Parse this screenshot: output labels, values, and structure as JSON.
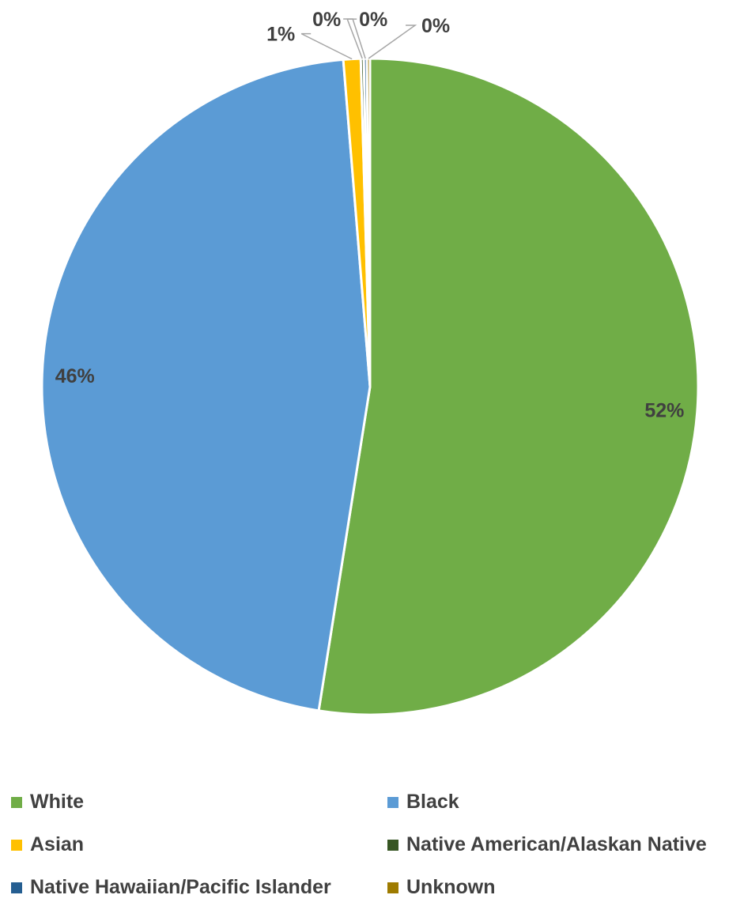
{
  "chart_data": {
    "type": "pie",
    "categories": [
      "White",
      "Black",
      "Asian",
      "Native American/Alaskan Native",
      "Native Hawaiian/Pacific Islander",
      "Unknown"
    ],
    "values": [
      52.5,
      46.2,
      0.85,
      0.15,
      0.15,
      0.15
    ],
    "data_labels": [
      "52%",
      "46%",
      "1%",
      "0%",
      "0%",
      "0%"
    ],
    "colors": [
      "#70AD47",
      "#5B9BD5",
      "#FFC000",
      "#375623",
      "#255E91",
      "#9E7B00"
    ],
    "legend_position": "bottom"
  }
}
